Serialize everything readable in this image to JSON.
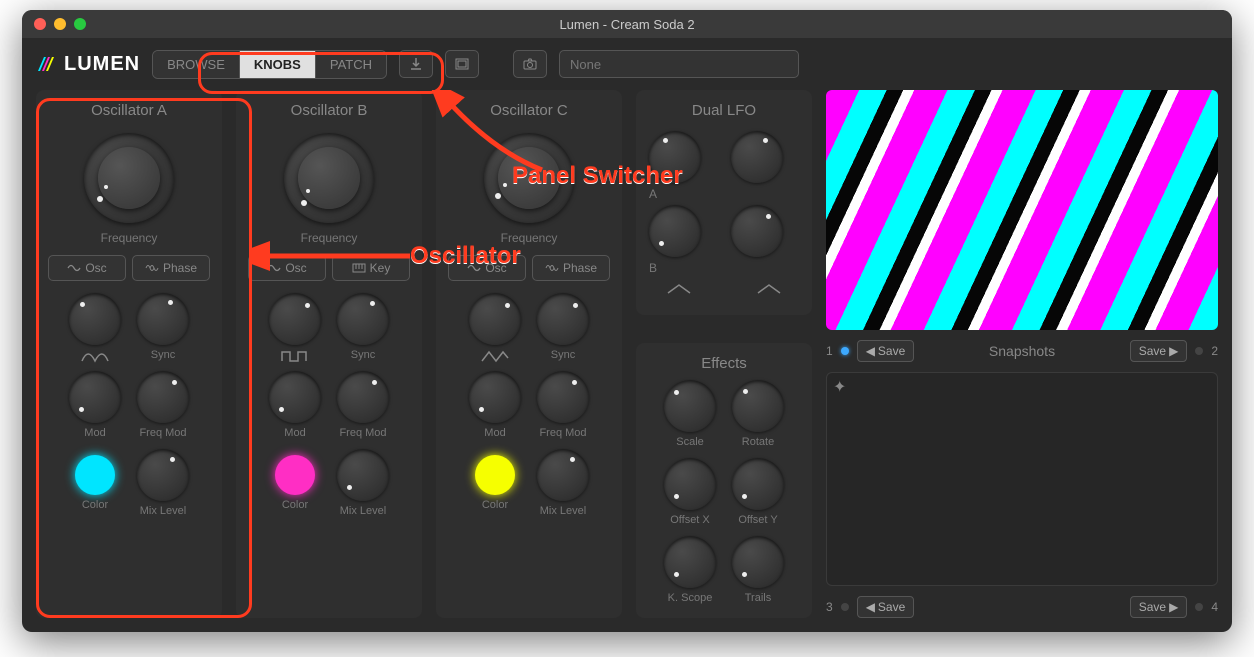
{
  "window": {
    "title": "Lumen - Cream Soda 2"
  },
  "app": {
    "name": "LUMEN"
  },
  "panel_tabs": {
    "items": [
      "BROWSE",
      "KNOBS",
      "PATCH"
    ],
    "active_index": 1
  },
  "toolbar_icons": [
    "download-icon",
    "window-icon",
    "camera-icon"
  ],
  "search": {
    "value": "None"
  },
  "annotations": {
    "panel_switcher": "Panel Switcher",
    "oscillator": "Oscillator",
    "highlight_color": "#ff3b1f"
  },
  "oscillators": [
    {
      "title": "Oscillator A",
      "freq_label": "Frequency",
      "freq_angle": 235,
      "buttons": [
        {
          "icon": "sine",
          "label": "Osc"
        },
        {
          "icon": "phase",
          "label": "Phase"
        }
      ],
      "knobs": [
        {
          "label": "",
          "angle": 320,
          "icon": "pulse-narrow"
        },
        {
          "label": "Sync",
          "angle": 25
        },
        {
          "label": "Mod",
          "angle": 225
        },
        {
          "label": "Freq Mod",
          "angle": 40
        },
        {
          "label": "Color",
          "color": "#00e5ff"
        },
        {
          "label": "Mix Level",
          "angle": 35
        }
      ]
    },
    {
      "title": "Oscillator B",
      "freq_label": "Frequency",
      "freq_angle": 225,
      "buttons": [
        {
          "icon": "sine",
          "label": "Osc"
        },
        {
          "icon": "key",
          "label": "Key"
        }
      ],
      "knobs": [
        {
          "label": "",
          "angle": 45,
          "icon": "square"
        },
        {
          "label": "Sync",
          "angle": 35
        },
        {
          "label": "Mod",
          "angle": 225
        },
        {
          "label": "Freq Mod",
          "angle": 40
        },
        {
          "label": "Color",
          "color": "#ff2ec4"
        },
        {
          "label": "Mix Level",
          "angle": 225
        }
      ]
    },
    {
      "title": "Oscillator C",
      "freq_label": "Frequency",
      "freq_angle": 240,
      "buttons": [
        {
          "icon": "sine",
          "label": "Osc"
        },
        {
          "icon": "phase",
          "label": "Phase"
        }
      ],
      "knobs": [
        {
          "label": "",
          "angle": 45,
          "icon": "triangle"
        },
        {
          "label": "Sync",
          "angle": 45
        },
        {
          "label": "Mod",
          "angle": 225
        },
        {
          "label": "Freq Mod",
          "angle": 40
        },
        {
          "label": "Color",
          "color": "#f6ff00"
        },
        {
          "label": "Mix Level",
          "angle": 35
        }
      ]
    }
  ],
  "dual_lfo": {
    "title": "Dual LFO",
    "row_labels": [
      "A",
      "B"
    ],
    "knobs": [
      {
        "angle": 330
      },
      {
        "angle": 30
      },
      {
        "angle": 225
      },
      {
        "angle": 40
      }
    ]
  },
  "effects": {
    "title": "Effects",
    "knobs": [
      {
        "label": "Scale",
        "angle": 315
      },
      {
        "label": "Rotate",
        "angle": 320
      },
      {
        "label": "Offset X",
        "angle": 225
      },
      {
        "label": "Offset Y",
        "angle": 225
      },
      {
        "label": "K. Scope",
        "angle": 225
      },
      {
        "label": "Trails",
        "angle": 225
      }
    ]
  },
  "snapshots": {
    "title": "Snapshots",
    "slots": [
      {
        "num": "1",
        "active": true,
        "btn": "Save",
        "dir": "left"
      },
      {
        "num": "2",
        "active": false,
        "btn": "Save",
        "dir": "right"
      },
      {
        "num": "3",
        "active": false,
        "btn": "Save",
        "dir": "left"
      },
      {
        "num": "4",
        "active": false,
        "btn": "Save",
        "dir": "right"
      }
    ]
  },
  "colors": {
    "bg": "#2a2a2a",
    "panel": "#2f2f2f",
    "text_dim": "#888888",
    "knob_dot": "#eeeeee",
    "annot": "#ff3b1f"
  }
}
